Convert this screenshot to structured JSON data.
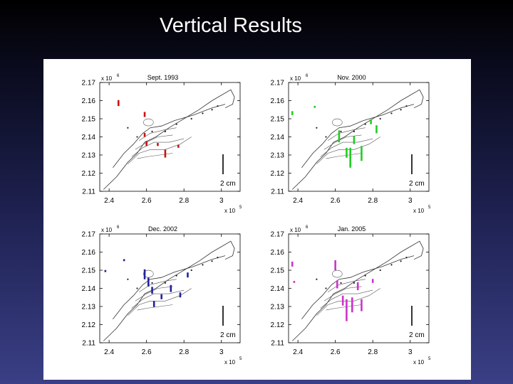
{
  "slide": {
    "title": "Vertical Results"
  },
  "colors": {
    "bg_top": "#000000",
    "bg_bottom": "#3a3f86",
    "panel_bg": "#ffffff"
  },
  "chart_data": [
    {
      "type": "scatter",
      "title": "Sept. 1993",
      "color": "#cc1111",
      "x_ticks": [
        "2.4",
        "2.6",
        "2.8",
        "3"
      ],
      "y_ticks": [
        "2.17",
        "2.16",
        "2.15",
        "2.14",
        "2.13",
        "2.12",
        "2.11"
      ],
      "x_exponent": "x 10",
      "x_exponent_power": "5",
      "y_exponent": "x 10",
      "y_exponent_power": "6",
      "xlim": [
        2.35,
        3.1
      ],
      "ylim": [
        2.11,
        2.17
      ],
      "scale_label": "2 cm",
      "markers": [
        {
          "x": 2.45,
          "y": 2.157,
          "dz": 0.6
        },
        {
          "x": 2.59,
          "y": 2.151,
          "dz": 0.5
        },
        {
          "x": 2.59,
          "y": 2.14,
          "dz": 0.4
        },
        {
          "x": 2.6,
          "y": 2.135,
          "dz": 0.5
        },
        {
          "x": 2.66,
          "y": 2.135,
          "dz": 0.3
        },
        {
          "x": 2.7,
          "y": 2.133,
          "dz": -0.8
        },
        {
          "x": 2.77,
          "y": 2.134,
          "dz": 0.3
        }
      ]
    },
    {
      "type": "scatter",
      "title": "Nov. 2000",
      "color": "#22cc22",
      "x_ticks": [
        "2.4",
        "2.6",
        "2.8",
        "3"
      ],
      "y_ticks": [
        "2.17",
        "2.16",
        "2.15",
        "2.14",
        "2.13",
        "2.12",
        "2.11"
      ],
      "x_exponent": "x 10",
      "x_exponent_power": "5",
      "y_exponent": "x 10",
      "y_exponent_power": "6",
      "xlim": [
        2.35,
        3.1
      ],
      "ylim": [
        2.11,
        2.17
      ],
      "scale_label": "2 cm",
      "markers": [
        {
          "x": 2.37,
          "y": 2.152,
          "dz": 0.4
        },
        {
          "x": 2.49,
          "y": 2.156,
          "dz": 0.2
        },
        {
          "x": 2.62,
          "y": 2.137,
          "dz": 1.2
        },
        {
          "x": 2.66,
          "y": 2.134,
          "dz": -1.0
        },
        {
          "x": 2.68,
          "y": 2.134,
          "dz": -2.0
        },
        {
          "x": 2.7,
          "y": 2.136,
          "dz": 0.8
        },
        {
          "x": 2.74,
          "y": 2.135,
          "dz": -1.5
        },
        {
          "x": 2.79,
          "y": 2.147,
          "dz": 0.5
        },
        {
          "x": 2.82,
          "y": 2.142,
          "dz": 0.8
        }
      ]
    },
    {
      "type": "scatter",
      "title": "Dec. 2002",
      "color": "#22229c",
      "x_ticks": [
        "2.4",
        "2.6",
        "2.8",
        "3"
      ],
      "y_ticks": [
        "2.17",
        "2.16",
        "2.15",
        "2.14",
        "2.13",
        "2.12",
        "2.11"
      ],
      "x_exponent": "x 10",
      "x_exponent_power": "5",
      "y_exponent": "x 10",
      "y_exponent_power": "6",
      "xlim": [
        2.35,
        3.1
      ],
      "ylim": [
        2.11,
        2.17
      ],
      "scale_label": "2 cm",
      "markers": [
        {
          "x": 2.38,
          "y": 2.149,
          "dz": 0.2
        },
        {
          "x": 2.48,
          "y": 2.155,
          "dz": 0.2
        },
        {
          "x": 2.59,
          "y": 2.145,
          "dz": 1.0
        },
        {
          "x": 2.61,
          "y": 2.141,
          "dz": 0.9
        },
        {
          "x": 2.63,
          "y": 2.137,
          "dz": 0.7
        },
        {
          "x": 2.64,
          "y": 2.133,
          "dz": -0.6
        },
        {
          "x": 2.68,
          "y": 2.134,
          "dz": 0.5
        },
        {
          "x": 2.73,
          "y": 2.138,
          "dz": 0.7
        },
        {
          "x": 2.78,
          "y": 2.135,
          "dz": 0.5
        },
        {
          "x": 2.82,
          "y": 2.146,
          "dz": 0.5
        }
      ]
    },
    {
      "type": "scatter",
      "title": "Jan. 2005",
      "color": "#cc33cc",
      "x_ticks": [
        "2.4",
        "2.6",
        "2.8",
        "3"
      ],
      "y_ticks": [
        "2.17",
        "2.16",
        "2.15",
        "2.14",
        "2.13",
        "2.12",
        "2.11"
      ],
      "x_exponent": "x 10",
      "x_exponent_power": "5",
      "y_exponent": "x 10",
      "y_exponent_power": "6",
      "xlim": [
        2.35,
        3.1
      ],
      "ylim": [
        2.11,
        2.17
      ],
      "scale_label": "2 cm",
      "markers": [
        {
          "x": 2.37,
          "y": 2.152,
          "dz": 0.5
        },
        {
          "x": 2.38,
          "y": 2.143,
          "dz": 0.2
        },
        {
          "x": 2.6,
          "y": 2.15,
          "dz": 1.0
        },
        {
          "x": 2.61,
          "y": 2.14,
          "dz": 0.8
        },
        {
          "x": 2.64,
          "y": 2.136,
          "dz": -1.0
        },
        {
          "x": 2.66,
          "y": 2.134,
          "dz": -2.2
        },
        {
          "x": 2.69,
          "y": 2.135,
          "dz": -1.5
        },
        {
          "x": 2.72,
          "y": 2.139,
          "dz": 0.8
        },
        {
          "x": 2.74,
          "y": 2.134,
          "dz": -1.2
        },
        {
          "x": 2.8,
          "y": 2.143,
          "dz": 0.4
        }
      ]
    }
  ]
}
